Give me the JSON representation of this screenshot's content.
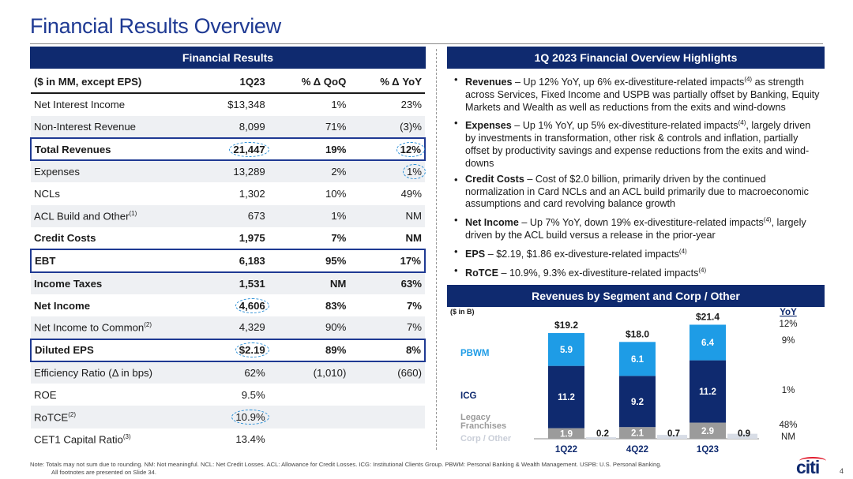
{
  "title": "Financial Results Overview",
  "left_panel": {
    "header": "Financial Results",
    "columns": [
      "($ in MM, except EPS)",
      "1Q23",
      "% Δ QoQ",
      "% Δ YoY"
    ],
    "rows": [
      {
        "label": "Net Interest Income",
        "sup": "",
        "v1": "$13,348",
        "v2": "1%",
        "v3": "23%"
      },
      {
        "label": "Non-Interest Revenue",
        "sup": "",
        "v1": "8,099",
        "v2": "71%",
        "v3": "(3)%"
      },
      {
        "label": "Total Revenues",
        "sup": "",
        "v1": "21,447",
        "v2": "19%",
        "v3": "12%"
      },
      {
        "label": "Expenses",
        "sup": "",
        "v1": "13,289",
        "v2": "2%",
        "v3": "1%"
      },
      {
        "label": "NCLs",
        "sup": "",
        "v1": "1,302",
        "v2": "10%",
        "v3": "49%"
      },
      {
        "label": "ACL Build and Other",
        "sup": "(1)",
        "v1": "673",
        "v2": "1%",
        "v3": "NM"
      },
      {
        "label": "Credit Costs",
        "sup": "",
        "v1": "1,975",
        "v2": "7%",
        "v3": "NM"
      },
      {
        "label": "EBT",
        "sup": "",
        "v1": "6,183",
        "v2": "95%",
        "v3": "17%"
      },
      {
        "label": "Income Taxes",
        "sup": "",
        "v1": "1,531",
        "v2": "NM",
        "v3": "63%"
      },
      {
        "label": "Net Income",
        "sup": "",
        "v1": "4,606",
        "v2": "83%",
        "v3": "7%"
      },
      {
        "label": "Net Income to Common",
        "sup": "(2)",
        "v1": "4,329",
        "v2": "90%",
        "v3": "7%"
      },
      {
        "label": "Diluted EPS",
        "sup": "",
        "v1": "$2.19",
        "v2": "89%",
        "v3": "8%"
      },
      {
        "label": "Efficiency Ratio (Δ in bps)",
        "sup": "",
        "v1": "62%",
        "v2": "(1,010)",
        "v3": "(660)"
      },
      {
        "label": "ROE",
        "sup": "",
        "v1": "9.5%",
        "v2": "",
        "v3": ""
      },
      {
        "label": "RoTCE",
        "sup": "(2)",
        "v1": "10.9%",
        "v2": "",
        "v3": ""
      },
      {
        "label": "CET1 Capital Ratio",
        "sup": "(3)",
        "v1": "13.4%",
        "v2": "",
        "v3": ""
      }
    ]
  },
  "right_panel": {
    "header": "1Q 2023 Financial Overview Highlights",
    "bullets": [
      {
        "head": "Revenues",
        "text": " – Up 12% YoY, up 6% ex-divestiture-related impacts",
        "sup": "(4)",
        "tail": " as strength across Services, Fixed Income and USPB was partially offset by Banking, Equity Markets and Wealth as well as reductions from the exits and wind-downs"
      },
      {
        "head": "Expenses",
        "text": " – Up 1% YoY, up 5% ex-divestiture-related impacts",
        "sup": "(4)",
        "tail": ", largely driven by investments in transformation, other risk & controls and inflation, partially offset by productivity savings and expense reductions from the exits and wind-downs"
      },
      {
        "head": "Credit Costs",
        "text": " – Cost of $2.0 billion, primarily driven by the continued normalization in Card NCLs and an ACL build primarily due to macroeconomic assumptions and card revolving balance growth",
        "sup": "",
        "tail": ""
      },
      {
        "head": "Net Income",
        "text": " – Up 7% YoY, down 19% ex-divestiture-related impacts",
        "sup": "(4)",
        "tail": ", largely driven by the ACL build versus a release in the prior-year"
      },
      {
        "head": "EPS",
        "text": " – $2.19, $1.86 ex-divesture-related impacts",
        "sup": "(4)",
        "tail": ""
      },
      {
        "head": "RoTCE",
        "text": " – 10.9%, 9.3% ex-divestiture-related impacts",
        "sup": "(4)",
        "tail": ""
      }
    ]
  },
  "segment_panel": {
    "header": "Revenues by Segment and Corp / Other",
    "unit": "($ in B)",
    "yoy_label": "YoY",
    "segment_labels": [
      "PBWM",
      "ICG",
      "Legacy Franchises",
      "Corp / Other"
    ],
    "yoy_values": [
      "12%",
      "9%",
      "1%",
      "48%",
      "NM"
    ]
  },
  "chart_data": {
    "type": "bar",
    "stacked": true,
    "categories": [
      "1Q22",
      "4Q22",
      "1Q23"
    ],
    "totals": [
      "$19.2",
      "$18.0",
      "$21.4"
    ],
    "series": [
      {
        "name": "Legacy Franchises",
        "values": [
          1.9,
          2.1,
          2.9
        ]
      },
      {
        "name": "ICG",
        "values": [
          11.2,
          9.2,
          11.2
        ]
      },
      {
        "name": "PBWM",
        "values": [
          5.9,
          6.1,
          6.4
        ]
      },
      {
        "name": "Corp / Other",
        "values": [
          0.2,
          0.7,
          0.9
        ]
      }
    ],
    "colors": {
      "PBWM": "#1e9ce6",
      "ICG": "#0f2a6f",
      "Legacy Franchises": "#9b9b9b",
      "Corp / Other": "#d8dde6"
    }
  },
  "footer": {
    "note_line1": "Note:   Totals may not sum due to rounding.  NM: Not meaningful. NCL: Net Credit Losses. ACL: Allowance for Credit Losses.  ICG: Institutional Clients Group.  PBWM: Personal Banking & Wealth Management. USPB: U.S. Personal Banking.",
    "note_line2": "All footnotes are presented on Slide 34.",
    "logo": "citi",
    "page": "4"
  }
}
